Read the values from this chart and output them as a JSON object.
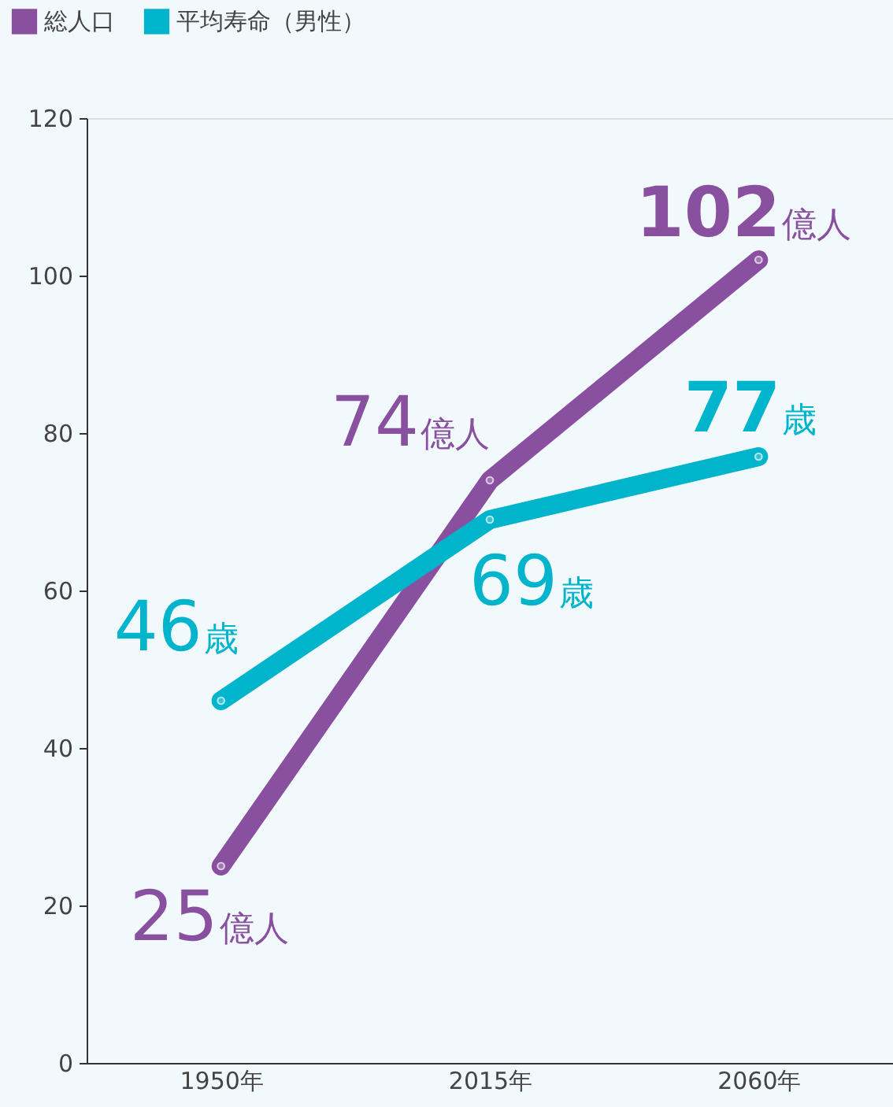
{
  "chart_data": {
    "type": "line",
    "categories": [
      "1950年",
      "2015年",
      "2060年"
    ],
    "series": [
      {
        "name": "総人口",
        "color": "#8a50a0",
        "values": [
          25,
          74,
          102
        ],
        "value_labels": [
          "25億人",
          "74億人",
          "102億人"
        ]
      },
      {
        "name": "平均寿命（男性）",
        "color": "#00b4cc",
        "values": [
          46,
          69,
          77
        ],
        "value_labels": [
          "46歳",
          "69歳",
          "77歳"
        ]
      }
    ],
    "ylim": [
      0,
      120
    ],
    "yticks": [
      0,
      20,
      40,
      60,
      80,
      100,
      120
    ],
    "grid": false,
    "legend": "top left",
    "marker": "circle",
    "line_style": "solid"
  }
}
